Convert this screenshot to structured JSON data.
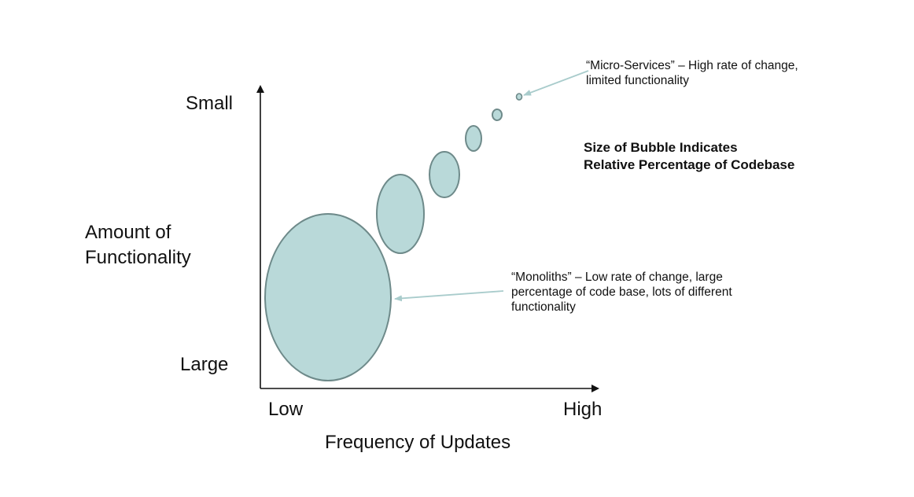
{
  "diagram": {
    "y_axis": {
      "top_label": "Small",
      "bottom_label": "Large",
      "title_lines": [
        "Amount of",
        "Functionality"
      ]
    },
    "x_axis": {
      "left_label": "Low",
      "right_label": "High",
      "title": "Frequency of Updates"
    },
    "legend_note_lines": [
      "Size of Bubble Indicates",
      "Relative Percentage of Codebase"
    ],
    "annotations": {
      "micro_services_lines": [
        "“Micro-Services” – High rate of change,",
        "limited functionality"
      ],
      "monoliths_lines": [
        "“Monoliths” – Low rate of change, large",
        "percentage of code base, lots of different",
        "functionality"
      ]
    },
    "bubble_count": 6,
    "colors": {
      "bubble_fill": "#b9d9d9",
      "bubble_stroke": "#6e8a8a",
      "arrow": "#a9cccc",
      "axis": "#111111"
    }
  }
}
